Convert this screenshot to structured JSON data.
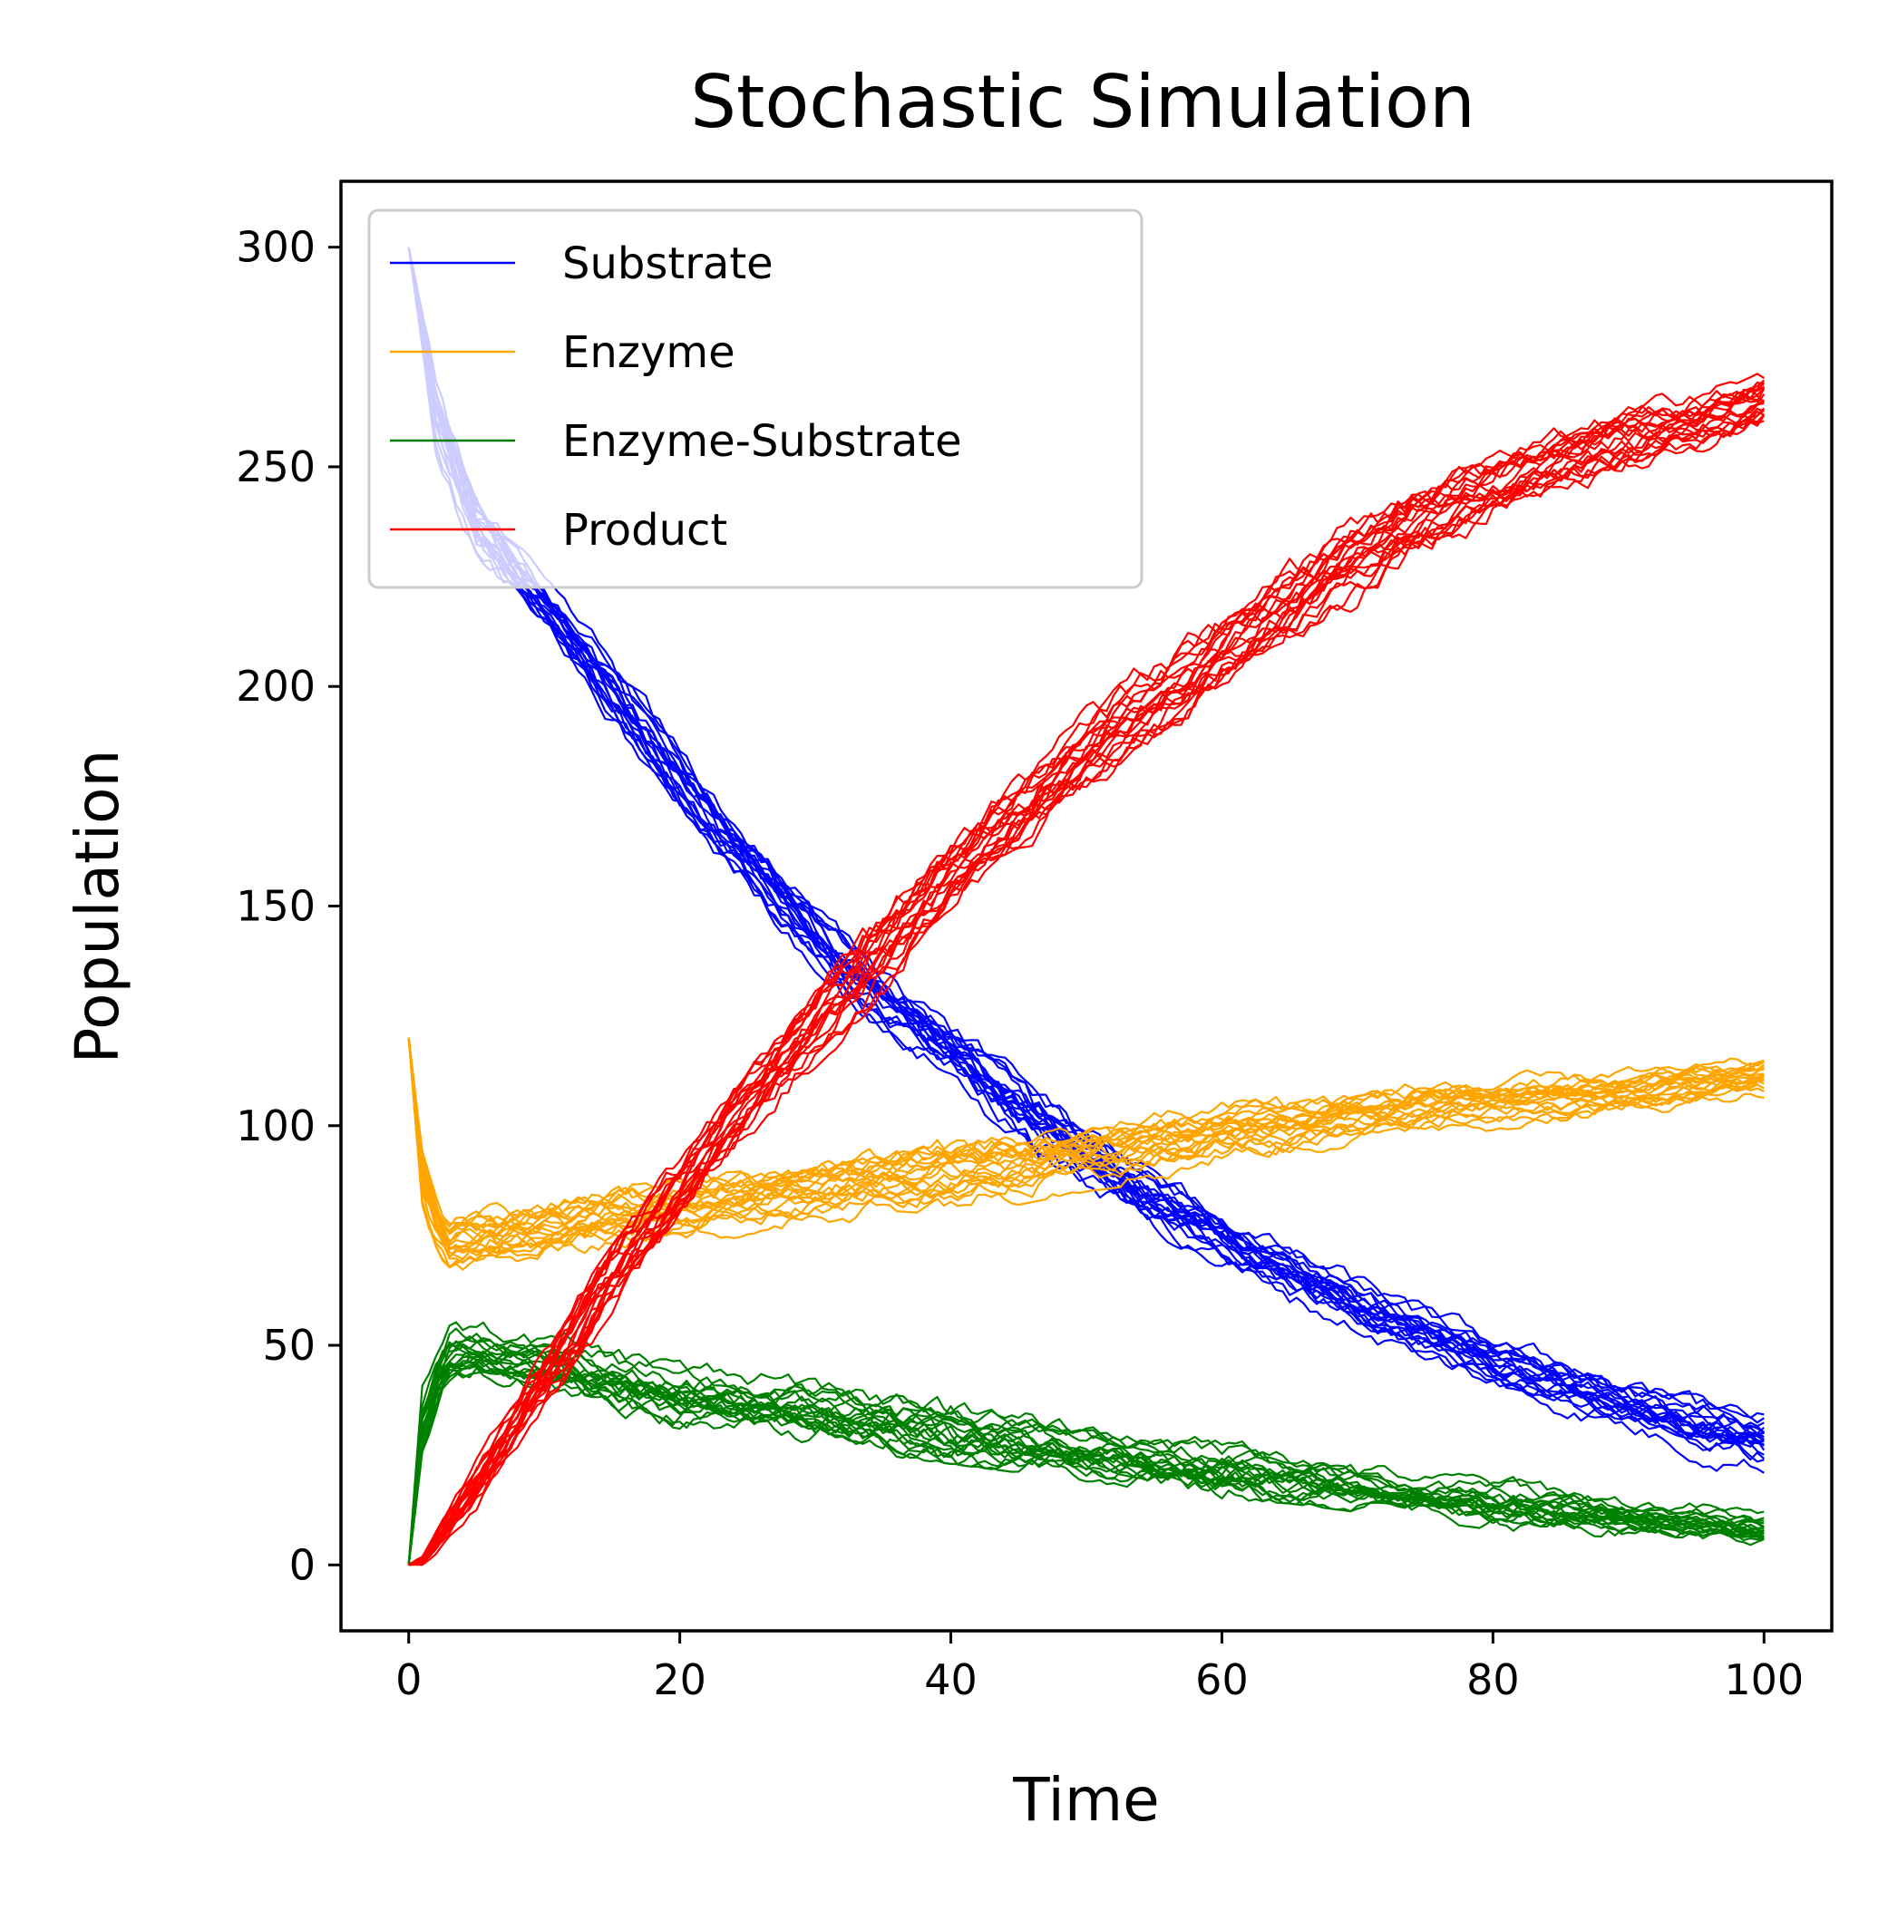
{
  "chart_data": {
    "type": "line",
    "title": "Stochastic Simulation",
    "xlabel": "Time",
    "ylabel": "Population",
    "xlim": [
      -5,
      105
    ],
    "ylim": [
      -15,
      315
    ],
    "xticks": [
      0,
      20,
      40,
      60,
      80,
      100
    ],
    "yticks": [
      0,
      50,
      100,
      150,
      200,
      250,
      300
    ],
    "legend_position": "top-left",
    "grid": false,
    "runs_per_species": 20,
    "series": [
      {
        "name": "Substrate",
        "color": "#0000ff",
        "x": [
          0,
          2,
          5,
          10,
          15,
          20,
          25,
          30,
          35,
          40,
          45,
          50,
          55,
          60,
          65,
          70,
          75,
          80,
          85,
          90,
          95,
          100
        ],
        "y_mean": [
          300,
          262,
          236,
          218,
          198,
          178,
          160,
          143,
          128,
          117,
          103,
          92,
          83,
          74,
          66,
          59,
          52,
          46,
          41,
          36,
          31,
          28
        ],
        "y_range": [
          [
            300,
            300
          ],
          [
            250,
            275
          ],
          [
            225,
            248
          ],
          [
            210,
            225
          ],
          [
            188,
            210
          ],
          [
            168,
            188
          ],
          [
            150,
            170
          ],
          [
            135,
            155
          ],
          [
            120,
            140
          ],
          [
            108,
            128
          ],
          [
            92,
            115
          ],
          [
            82,
            103
          ],
          [
            74,
            93
          ],
          [
            65,
            83
          ],
          [
            57,
            75
          ],
          [
            50,
            68
          ],
          [
            43,
            60
          ],
          [
            37,
            54
          ],
          [
            32,
            49
          ],
          [
            27,
            44
          ],
          [
            22,
            40
          ],
          [
            20,
            38
          ]
        ]
      },
      {
        "name": "Enzyme",
        "color": "#ffa500",
        "x": [
          0,
          1,
          2,
          3,
          5,
          10,
          15,
          20,
          25,
          30,
          35,
          40,
          45,
          50,
          55,
          60,
          65,
          70,
          75,
          80,
          85,
          90,
          95,
          100
        ],
        "y_mean": [
          120,
          88,
          78,
          72,
          73,
          76,
          79,
          81,
          83,
          85,
          87,
          89,
          91,
          93,
          95,
          98,
          100,
          102,
          104,
          105,
          106,
          107,
          109,
          111
        ],
        "y_range": [
          [
            120,
            120
          ],
          [
            76,
            100
          ],
          [
            70,
            88
          ],
          [
            64,
            82
          ],
          [
            64,
            84
          ],
          [
            68,
            86
          ],
          [
            70,
            88
          ],
          [
            72,
            92
          ],
          [
            75,
            93
          ],
          [
            77,
            96
          ],
          [
            79,
            98
          ],
          [
            80,
            100
          ],
          [
            82,
            102
          ],
          [
            85,
            103
          ],
          [
            87,
            105
          ],
          [
            90,
            107
          ],
          [
            92,
            109
          ],
          [
            95,
            110
          ],
          [
            97,
            112
          ],
          [
            99,
            113
          ],
          [
            100,
            114
          ],
          [
            102,
            115
          ],
          [
            104,
            116
          ],
          [
            106,
            117
          ]
        ]
      },
      {
        "name": "Enzyme-Substrate",
        "color": "#008000",
        "x": [
          0,
          1,
          2,
          3,
          5,
          10,
          15,
          20,
          25,
          30,
          35,
          40,
          45,
          50,
          55,
          60,
          65,
          70,
          75,
          80,
          85,
          90,
          95,
          100
        ],
        "y_mean": [
          0,
          32,
          42,
          48,
          49,
          46,
          42,
          39,
          37,
          35,
          33,
          30,
          28,
          26,
          24,
          22,
          20,
          18,
          16,
          14,
          13,
          11,
          10,
          8
        ],
        "y_range": [
          [
            0,
            0
          ],
          [
            20,
            44
          ],
          [
            30,
            52
          ],
          [
            38,
            58
          ],
          [
            40,
            57
          ],
          [
            37,
            55
          ],
          [
            34,
            55
          ],
          [
            31,
            51
          ],
          [
            29,
            47
          ],
          [
            27,
            47
          ],
          [
            25,
            44
          ],
          [
            23,
            47
          ],
          [
            21,
            38
          ],
          [
            19,
            35
          ],
          [
            17,
            33
          ],
          [
            15,
            35
          ],
          [
            14,
            31
          ],
          [
            12,
            27
          ],
          [
            10,
            23
          ],
          [
            8,
            24
          ],
          [
            7,
            21
          ],
          [
            6,
            18
          ],
          [
            5,
            17
          ],
          [
            4,
            15
          ]
        ]
      },
      {
        "name": "Product",
        "color": "#ff0000",
        "x": [
          0,
          1,
          2,
          5,
          10,
          15,
          20,
          25,
          30,
          35,
          40,
          45,
          50,
          55,
          60,
          65,
          70,
          75,
          80,
          85,
          90,
          95,
          100
        ],
        "y_mean": [
          0,
          1,
          5,
          18,
          42,
          65,
          85,
          105,
          122,
          140,
          157,
          170,
          184,
          196,
          208,
          219,
          229,
          238,
          245,
          251,
          256,
          260,
          265
        ],
        "y_range": [
          [
            0,
            0
          ],
          [
            0,
            3
          ],
          [
            2,
            9
          ],
          [
            12,
            26
          ],
          [
            35,
            55
          ],
          [
            55,
            78
          ],
          [
            75,
            95
          ],
          [
            95,
            115
          ],
          [
            112,
            135
          ],
          [
            130,
            160
          ],
          [
            148,
            172
          ],
          [
            160,
            185
          ],
          [
            174,
            200
          ],
          [
            186,
            212
          ],
          [
            198,
            222
          ],
          [
            208,
            233
          ],
          [
            218,
            245
          ],
          [
            228,
            252
          ],
          [
            236,
            258
          ],
          [
            242,
            264
          ],
          [
            247,
            268
          ],
          [
            252,
            271
          ],
          [
            255,
            274
          ]
        ]
      }
    ]
  }
}
